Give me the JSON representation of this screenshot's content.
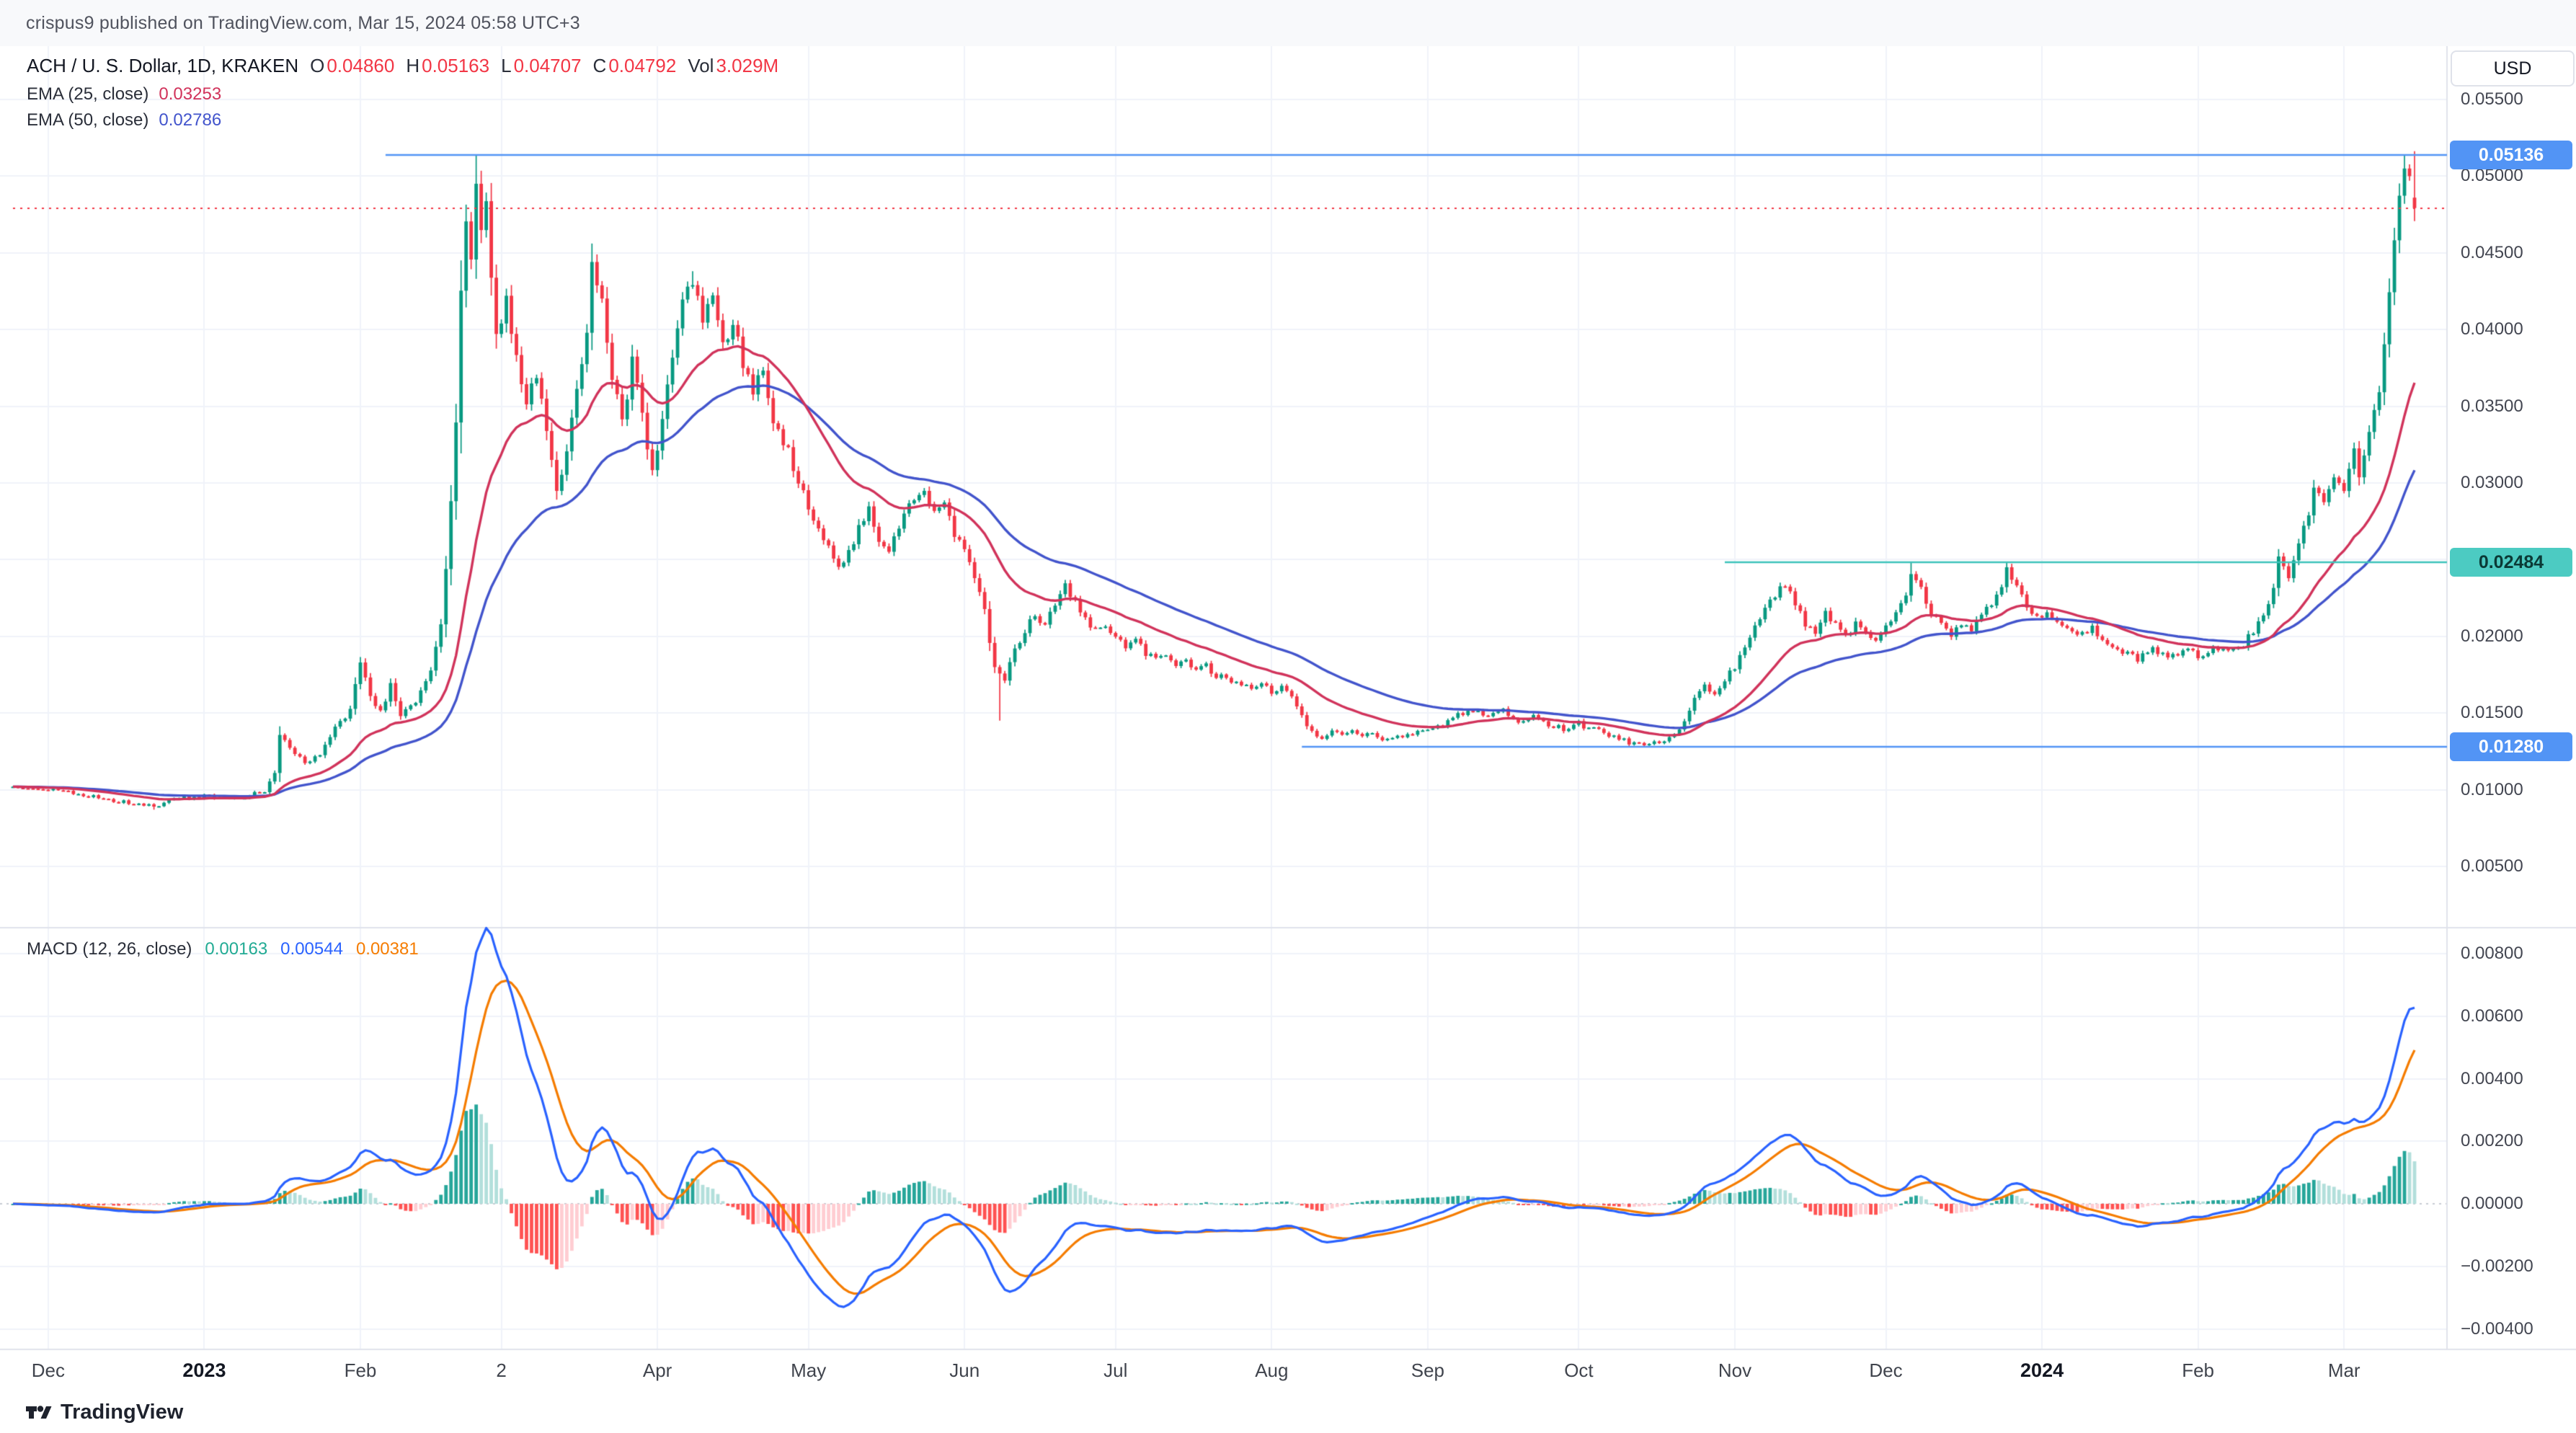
{
  "attribution": "crispus9 published on TradingView.com, Mar 15, 2024 05:58 UTC+3",
  "header": {
    "symbol": "ACH / U. S. Dollar, 1D, KRAKEN",
    "ohlc": [
      {
        "label": "O",
        "value": "0.04860"
      },
      {
        "label": "H",
        "value": "0.05163"
      },
      {
        "label": "L",
        "value": "0.04707"
      },
      {
        "label": "C",
        "value": "0.04792"
      }
    ],
    "volume_label": "Vol",
    "volume_value": "3.029M",
    "value_color": "#f23645"
  },
  "indicators": {
    "ema25": {
      "label": "EMA (25, close)",
      "value": "0.03253",
      "color": "#d1335b"
    },
    "ema50": {
      "label": "EMA (50, close)",
      "value": "0.02786",
      "color": "#4254cc"
    },
    "macd": {
      "label": "MACD (12, 26, close)",
      "values": [
        {
          "text": "0.00163",
          "color": "#22ab94"
        },
        {
          "text": "0.00544",
          "color": "#2962ff"
        },
        {
          "text": "0.00381",
          "color": "#f57c00"
        }
      ]
    }
  },
  "price_axis": {
    "currency": "USD",
    "labels": [
      {
        "text": "0.05500",
        "value": 0.055
      },
      {
        "text": "0.05000",
        "value": 0.05
      },
      {
        "text": "0.04500",
        "value": 0.045
      },
      {
        "text": "0.04000",
        "value": 0.04
      },
      {
        "text": "0.03500",
        "value": 0.035
      },
      {
        "text": "0.03000",
        "value": 0.03
      },
      {
        "text": "0.02000",
        "value": 0.02
      },
      {
        "text": "0.01500",
        "value": 0.015
      },
      {
        "text": "0.01000",
        "value": 0.01
      },
      {
        "text": "0.00500",
        "value": 0.005
      }
    ],
    "badges": [
      {
        "text": "0.05136",
        "value": 0.05136,
        "bg": "#5294f5",
        "fg": "#ffffff"
      },
      {
        "text": "0.02484",
        "value": 0.02484,
        "bg": "#4ccbc2",
        "fg": "#0b3a36"
      },
      {
        "text": "0.01280",
        "value": 0.0128,
        "bg": "#5294f5",
        "fg": "#ffffff"
      }
    ]
  },
  "macd_axis": {
    "labels": [
      {
        "text": "0.00800",
        "value": 0.008
      },
      {
        "text": "0.00600",
        "value": 0.006
      },
      {
        "text": "0.00400",
        "value": 0.004
      },
      {
        "text": "0.00200",
        "value": 0.002
      },
      {
        "text": "0.00000",
        "value": 0.0
      },
      {
        "text": "−0.00200",
        "value": -0.002
      },
      {
        "text": "−0.00400",
        "value": -0.004
      }
    ]
  },
  "time_axis": {
    "labels": [
      {
        "text": "Dec",
        "day": 7
      },
      {
        "text": "2023",
        "day": 38,
        "bold": true
      },
      {
        "text": "Feb",
        "day": 69
      },
      {
        "text": "2",
        "day": 97
      },
      {
        "text": "Apr",
        "day": 128
      },
      {
        "text": "May",
        "day": 158
      },
      {
        "text": "Jun",
        "day": 189
      },
      {
        "text": "Jul",
        "day": 219
      },
      {
        "text": "Aug",
        "day": 250
      },
      {
        "text": "Sep",
        "day": 281
      },
      {
        "text": "Oct",
        "day": 311
      },
      {
        "text": "Nov",
        "day": 342
      },
      {
        "text": "Dec",
        "day": 372
      },
      {
        "text": "2024",
        "day": 403,
        "bold": true
      },
      {
        "text": "Feb",
        "day": 434
      },
      {
        "text": "Mar",
        "day": 463
      }
    ]
  },
  "footer": {
    "brand": "TradingView"
  },
  "chart_data": {
    "type": "candlestick+macd",
    "symbol": "ACH/USD",
    "interval": "1D",
    "exchange": "KRAKEN",
    "x_start": "2022-11-24",
    "x_end": "2024-03-15",
    "days": 478,
    "noise_seed": 20240315,
    "price_range_shown": [
      0.005,
      0.055
    ],
    "macd_range_shown": [
      -0.004,
      0.008
    ],
    "candle_colors": {
      "up": "#089981",
      "down": "#f23645"
    },
    "overlays": [
      {
        "type": "EMA",
        "length": 25,
        "color": "#d1335b"
      },
      {
        "type": "EMA",
        "length": 50,
        "color": "#4254cc"
      }
    ],
    "macd": {
      "fast": 12,
      "slow": 26,
      "signal_len": 9,
      "colors": {
        "macd": "#2962ff",
        "signal": "#f57c00",
        "hist_up_strong": "#26a69a",
        "hist_up_weak": "#b2dfdb",
        "hist_dn_strong": "#ff5252",
        "hist_dn_weak": "#ffcdd2"
      }
    },
    "levels": [
      {
        "value": 0.05136,
        "color": "#5294f5",
        "from_day": 74,
        "style": "solid"
      },
      {
        "value": 0.02484,
        "color": "#3cc3ba",
        "from_day": 340,
        "style": "solid"
      },
      {
        "value": 0.0128,
        "color": "#5294f5",
        "from_day": 256,
        "style": "solid"
      },
      {
        "value": 0.04792,
        "color": "#f23645",
        "from_day": 0,
        "style": "dotted"
      }
    ],
    "last_candle": {
      "open": 0.0486,
      "high": 0.05163,
      "low": 0.04707,
      "close": 0.04792
    },
    "forced_highs": [
      [
        92,
        0.05136
      ],
      [
        115,
        0.0448
      ],
      [
        135,
        0.0438
      ],
      [
        377,
        0.0248
      ],
      [
        396,
        0.0248
      ],
      [
        457,
        0.0302
      ],
      [
        475,
        0.0514
      ]
    ],
    "forced_lows": [
      [
        196,
        0.0145
      ],
      [
        28,
        0.0087
      ]
    ],
    "price_keypoints": [
      [
        0,
        0.0102
      ],
      [
        6,
        0.01
      ],
      [
        12,
        0.0098
      ],
      [
        18,
        0.0094
      ],
      [
        24,
        0.0091
      ],
      [
        28,
        0.0089
      ],
      [
        32,
        0.0094
      ],
      [
        38,
        0.0096
      ],
      [
        44,
        0.0094
      ],
      [
        50,
        0.0099
      ],
      [
        52,
        0.0112
      ],
      [
        53,
        0.0135
      ],
      [
        55,
        0.0128
      ],
      [
        58,
        0.0117
      ],
      [
        61,
        0.0124
      ],
      [
        64,
        0.014
      ],
      [
        67,
        0.0152
      ],
      [
        69,
        0.0185
      ],
      [
        71,
        0.0163
      ],
      [
        73,
        0.015
      ],
      [
        75,
        0.0168
      ],
      [
        77,
        0.0148
      ],
      [
        80,
        0.0158
      ],
      [
        83,
        0.0178
      ],
      [
        85,
        0.021
      ],
      [
        86,
        0.0245
      ],
      [
        87,
        0.0285
      ],
      [
        88,
        0.034
      ],
      [
        89,
        0.042
      ],
      [
        90,
        0.047
      ],
      [
        91,
        0.044
      ],
      [
        92,
        0.05
      ],
      [
        93,
        0.046
      ],
      [
        94,
        0.0487
      ],
      [
        95,
        0.043
      ],
      [
        96,
        0.0395
      ],
      [
        98,
        0.042
      ],
      [
        100,
        0.038
      ],
      [
        102,
        0.0352
      ],
      [
        104,
        0.0372
      ],
      [
        106,
        0.033
      ],
      [
        108,
        0.0292
      ],
      [
        110,
        0.032
      ],
      [
        112,
        0.0358
      ],
      [
        114,
        0.04
      ],
      [
        115,
        0.0442
      ],
      [
        117,
        0.042
      ],
      [
        119,
        0.0372
      ],
      [
        121,
        0.034
      ],
      [
        123,
        0.0378
      ],
      [
        125,
        0.0345
      ],
      [
        127,
        0.0305
      ],
      [
        129,
        0.0342
      ],
      [
        131,
        0.0382
      ],
      [
        133,
        0.042
      ],
      [
        135,
        0.0432
      ],
      [
        137,
        0.0408
      ],
      [
        139,
        0.0422
      ],
      [
        141,
        0.0392
      ],
      [
        143,
        0.0405
      ],
      [
        145,
        0.0378
      ],
      [
        147,
        0.0362
      ],
      [
        149,
        0.0375
      ],
      [
        151,
        0.0342
      ],
      [
        154,
        0.0322
      ],
      [
        156,
        0.03
      ],
      [
        158,
        0.0285
      ],
      [
        161,
        0.0262
      ],
      [
        164,
        0.0244
      ],
      [
        166,
        0.0256
      ],
      [
        168,
        0.027
      ],
      [
        170,
        0.0282
      ],
      [
        172,
        0.0265
      ],
      [
        174,
        0.0254
      ],
      [
        176,
        0.027
      ],
      [
        178,
        0.0288
      ],
      [
        181,
        0.0295
      ],
      [
        183,
        0.028
      ],
      [
        185,
        0.029
      ],
      [
        187,
        0.0268
      ],
      [
        189,
        0.0255
      ],
      [
        191,
        0.024
      ],
      [
        193,
        0.0215
      ],
      [
        195,
        0.0178
      ],
      [
        197,
        0.0172
      ],
      [
        199,
        0.019
      ],
      [
        201,
        0.0204
      ],
      [
        203,
        0.0214
      ],
      [
        205,
        0.0207
      ],
      [
        207,
        0.0222
      ],
      [
        209,
        0.0232
      ],
      [
        211,
        0.0222
      ],
      [
        213,
        0.0212
      ],
      [
        215,
        0.0204
      ],
      [
        217,
        0.0209
      ],
      [
        219,
        0.0199
      ],
      [
        221,
        0.0194
      ],
      [
        223,
        0.0199
      ],
      [
        225,
        0.0189
      ],
      [
        227,
        0.0184
      ],
      [
        229,
        0.0189
      ],
      [
        231,
        0.0181
      ],
      [
        233,
        0.0185
      ],
      [
        235,
        0.0177
      ],
      [
        237,
        0.0181
      ],
      [
        239,
        0.0171
      ],
      [
        241,
        0.0175
      ],
      [
        243,
        0.0169
      ],
      [
        246,
        0.0167
      ],
      [
        248,
        0.0171
      ],
      [
        250,
        0.0164
      ],
      [
        252,
        0.0167
      ],
      [
        254,
        0.0159
      ],
      [
        256,
        0.0149
      ],
      [
        258,
        0.0137
      ],
      [
        260,
        0.0134
      ],
      [
        262,
        0.0139
      ],
      [
        264,
        0.0135
      ],
      [
        266,
        0.0139
      ],
      [
        268,
        0.0134
      ],
      [
        270,
        0.0137
      ],
      [
        272,
        0.0132
      ],
      [
        275,
        0.0135
      ],
      [
        278,
        0.0137
      ],
      [
        281,
        0.0139
      ],
      [
        284,
        0.0143
      ],
      [
        287,
        0.0149
      ],
      [
        290,
        0.0152
      ],
      [
        293,
        0.0147
      ],
      [
        296,
        0.0151
      ],
      [
        299,
        0.0145
      ],
      [
        302,
        0.0149
      ],
      [
        305,
        0.0143
      ],
      [
        308,
        0.014
      ],
      [
        311,
        0.0143
      ],
      [
        314,
        0.0139
      ],
      [
        317,
        0.0136
      ],
      [
        320,
        0.0132
      ],
      [
        323,
        0.0129
      ],
      [
        326,
        0.0132
      ],
      [
        328,
        0.013
      ],
      [
        330,
        0.0136
      ],
      [
        332,
        0.0146
      ],
      [
        334,
        0.0158
      ],
      [
        336,
        0.0168
      ],
      [
        338,
        0.0164
      ],
      [
        340,
        0.0172
      ],
      [
        342,
        0.018
      ],
      [
        344,
        0.0192
      ],
      [
        346,
        0.0205
      ],
      [
        348,
        0.0216
      ],
      [
        350,
        0.0228
      ],
      [
        352,
        0.0232
      ],
      [
        354,
        0.0221
      ],
      [
        356,
        0.0209
      ],
      [
        358,
        0.0202
      ],
      [
        360,
        0.0214
      ],
      [
        362,
        0.0207
      ],
      [
        364,
        0.0199
      ],
      [
        366,
        0.0209
      ],
      [
        368,
        0.0204
      ],
      [
        370,
        0.0197
      ],
      [
        372,
        0.0206
      ],
      [
        374,
        0.0216
      ],
      [
        376,
        0.0226
      ],
      [
        377,
        0.024
      ],
      [
        379,
        0.023
      ],
      [
        381,
        0.0216
      ],
      [
        383,
        0.0208
      ],
      [
        385,
        0.02
      ],
      [
        387,
        0.0209
      ],
      [
        389,
        0.0204
      ],
      [
        391,
        0.0214
      ],
      [
        393,
        0.0221
      ],
      [
        395,
        0.0233
      ],
      [
        396,
        0.0242
      ],
      [
        398,
        0.0231
      ],
      [
        400,
        0.0221
      ],
      [
        402,
        0.0213
      ],
      [
        404,
        0.0216
      ],
      [
        407,
        0.0208
      ],
      [
        410,
        0.02
      ],
      [
        413,
        0.0205
      ],
      [
        416,
        0.0196
      ],
      [
        419,
        0.019
      ],
      [
        422,
        0.0185
      ],
      [
        425,
        0.0191
      ],
      [
        428,
        0.0187
      ],
      [
        431,
        0.0191
      ],
      [
        434,
        0.0188
      ],
      [
        437,
        0.0192
      ],
      [
        440,
        0.0189
      ],
      [
        443,
        0.0195
      ],
      [
        445,
        0.0203
      ],
      [
        447,
        0.0216
      ],
      [
        449,
        0.023
      ],
      [
        450,
        0.025
      ],
      [
        452,
        0.0241
      ],
      [
        454,
        0.026
      ],
      [
        456,
        0.0278
      ],
      [
        457,
        0.0296
      ],
      [
        459,
        0.0284
      ],
      [
        461,
        0.0302
      ],
      [
        463,
        0.0294
      ],
      [
        464,
        0.0312
      ],
      [
        465,
        0.0326
      ],
      [
        466,
        0.0306
      ],
      [
        467,
        0.0318
      ],
      [
        468,
        0.0332
      ],
      [
        469,
        0.0346
      ],
      [
        470,
        0.036
      ],
      [
        471,
        0.0388
      ],
      [
        472,
        0.0424
      ],
      [
        473,
        0.0455
      ],
      [
        474,
        0.0488
      ],
      [
        475,
        0.0505
      ],
      [
        476,
        0.05
      ],
      [
        477,
        0.0479
      ]
    ]
  }
}
